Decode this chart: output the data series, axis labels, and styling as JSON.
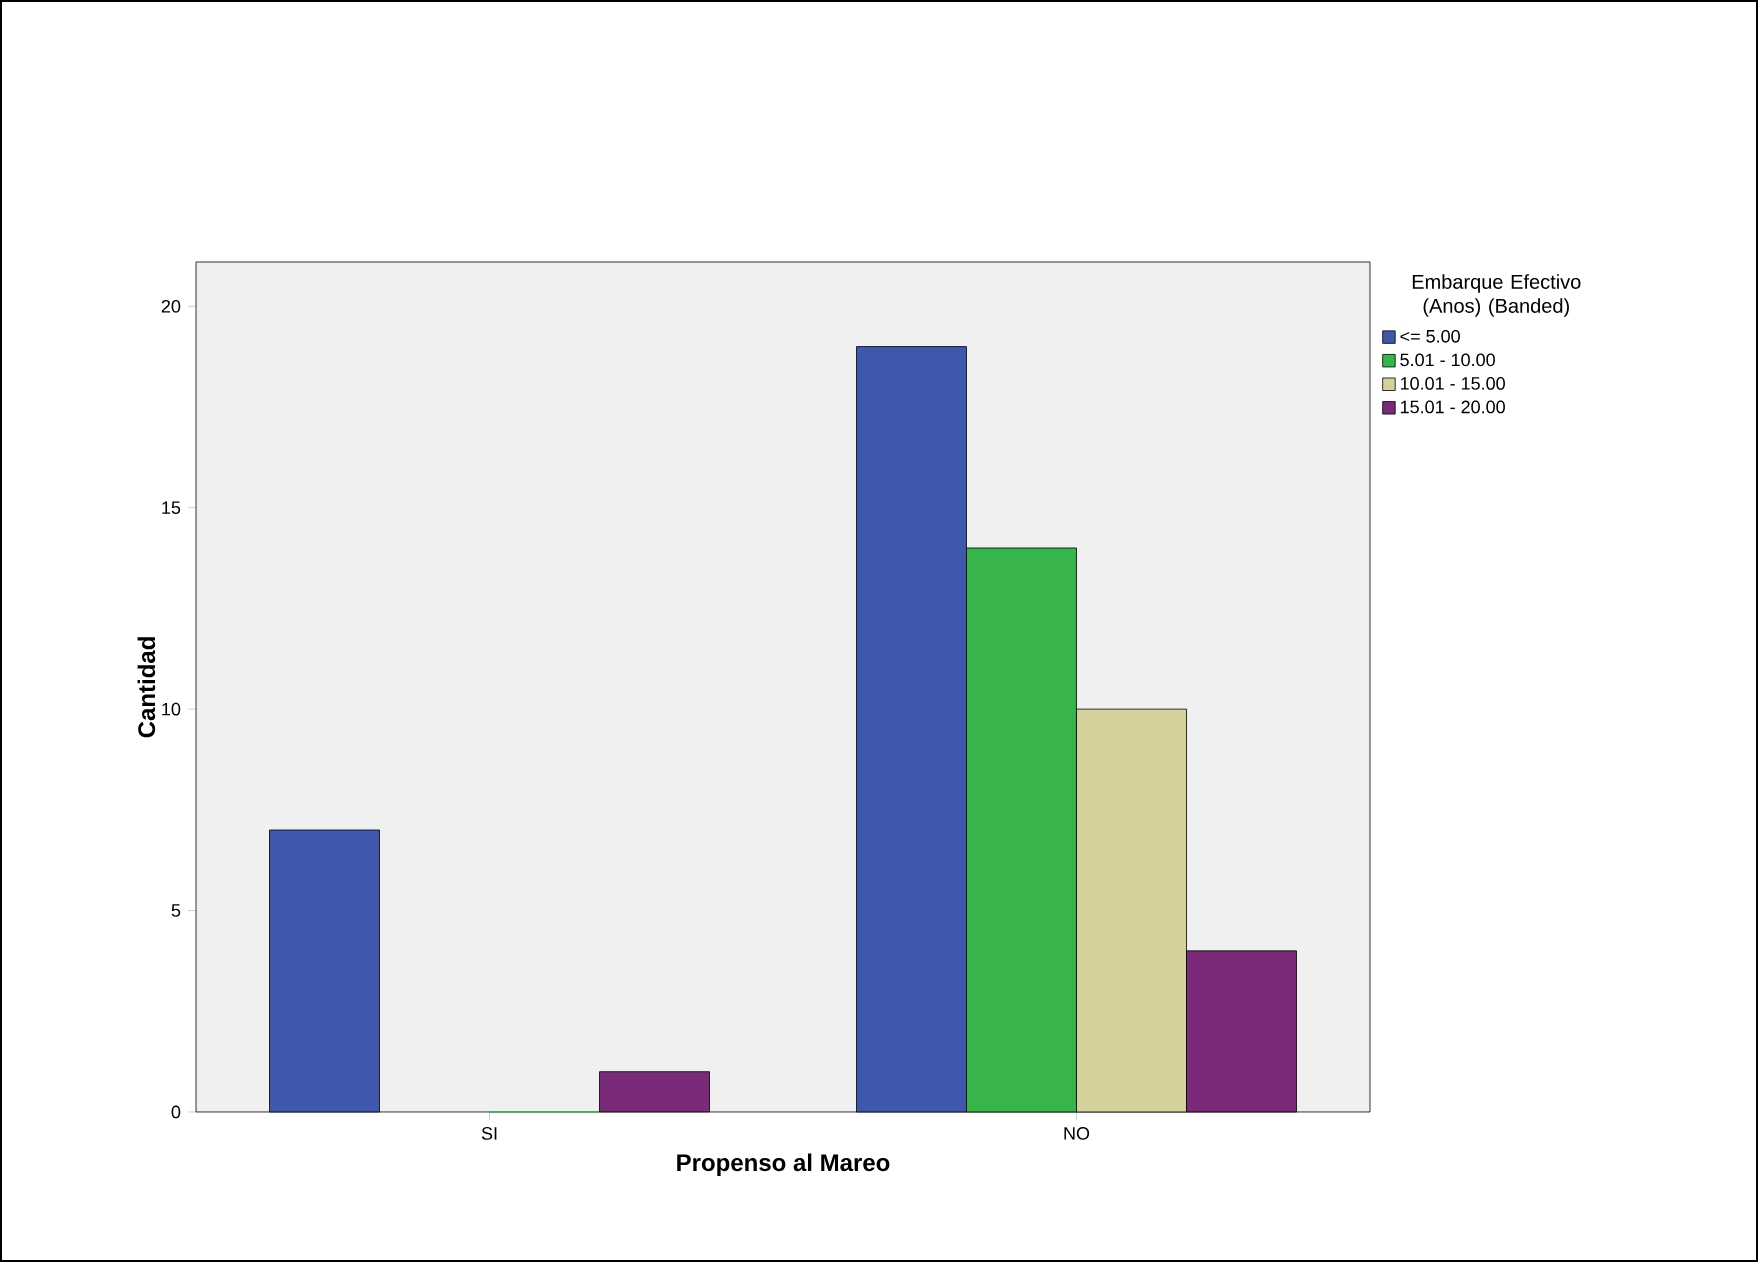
{
  "chart_data": {
    "type": "bar",
    "xlabel": "Propenso al Mareo",
    "ylabel": "Cantidad",
    "legend_title": "Embarque Efectivo (Anos) (Banded)",
    "categories": [
      "SI",
      "NO"
    ],
    "series": [
      {
        "name": "<= 5.00",
        "color": "#3f57ac",
        "values": [
          7,
          19
        ]
      },
      {
        "name": "5.01 - 10.00",
        "color": "#37b44a",
        "values": [
          0,
          14
        ]
      },
      {
        "name": "10.01 - 15.00",
        "color": "#d5d19a",
        "values": [
          0,
          10
        ]
      },
      {
        "name": "15.01 - 20.00",
        "color": "#7b2a7a",
        "values": [
          1,
          4
        ]
      }
    ],
    "ylim": [
      0,
      21.1
    ],
    "yticks": [
      0,
      5,
      10,
      15,
      20
    ],
    "grid": false,
    "legend": "right"
  }
}
